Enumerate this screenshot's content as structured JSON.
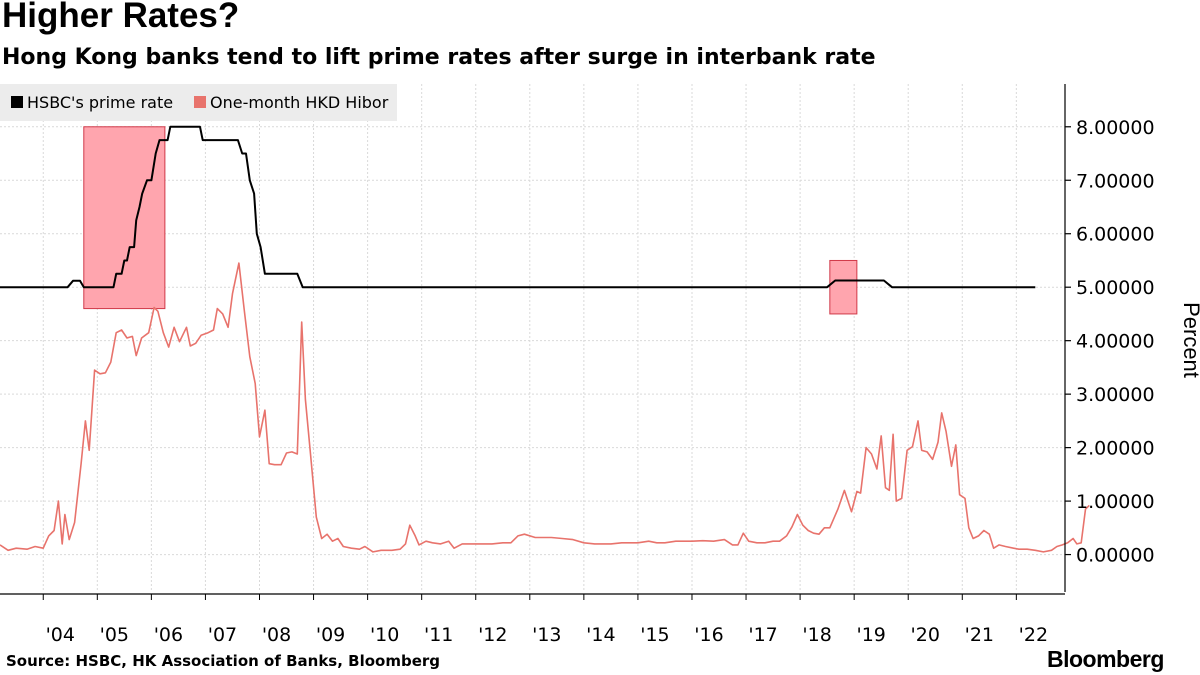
{
  "title": "Higher Rates?",
  "subtitle": "Hong Kong banks tend to lift prime rates after surge in interbank rate",
  "source": "Source: HSBC, HK Association of Banks, Bloomberg",
  "brand": "Bloomberg",
  "colors": {
    "prime": "#000000",
    "hibor": "#e8736c",
    "highlight_fill": "#ffa5ae",
    "highlight_stroke": "#d03848",
    "grid": "#d9d9d9",
    "legend_bg": "#ececec"
  },
  "chart_data": {
    "type": "line",
    "title": "Higher Rates?",
    "subtitle": "Hong Kong banks tend to lift prime rates after surge in interbank rate",
    "ylabel": "Percent",
    "xlim": [
      2003.2,
      2022.9
    ],
    "ylim": [
      -0.7,
      8.8
    ],
    "y_ticks": [
      0,
      1,
      2,
      3,
      4,
      5,
      6,
      7,
      8
    ],
    "y_tick_labels": [
      "0.00000",
      "1.00000",
      "2.00000",
      "3.00000",
      "4.00000",
      "5.00000",
      "6.00000",
      "7.00000",
      "8.00000"
    ],
    "x_ticks": [
      2004,
      2005,
      2006,
      2007,
      2008,
      2009,
      2010,
      2011,
      2012,
      2013,
      2014,
      2015,
      2016,
      2017,
      2018,
      2019,
      2020,
      2021,
      2022
    ],
    "x_tick_labels": [
      "'04",
      "'05",
      "'06",
      "'07",
      "'08",
      "'09",
      "'10",
      "'11",
      "'12",
      "'13",
      "'14",
      "'15",
      "'16",
      "'17",
      "'18",
      "'19",
      "'20",
      "'21",
      "'22"
    ],
    "grid": true,
    "legend_position": "top-left",
    "series": [
      {
        "name": "HSBC's prime rate",
        "color": "#000000",
        "points": [
          [
            2003.2,
            5.0
          ],
          [
            2004.0,
            5.0
          ],
          [
            2004.45,
            5.0
          ],
          [
            2004.55,
            5.12
          ],
          [
            2004.68,
            5.12
          ],
          [
            2004.75,
            5.0
          ],
          [
            2005.0,
            5.0
          ],
          [
            2005.3,
            5.0
          ],
          [
            2005.35,
            5.25
          ],
          [
            2005.45,
            5.25
          ],
          [
            2005.5,
            5.5
          ],
          [
            2005.55,
            5.5
          ],
          [
            2005.6,
            5.75
          ],
          [
            2005.68,
            5.75
          ],
          [
            2005.72,
            6.25
          ],
          [
            2005.78,
            6.5
          ],
          [
            2005.83,
            6.75
          ],
          [
            2005.92,
            7.0
          ],
          [
            2006.0,
            7.0
          ],
          [
            2006.08,
            7.5
          ],
          [
            2006.15,
            7.75
          ],
          [
            2006.3,
            7.75
          ],
          [
            2006.35,
            8.0
          ],
          [
            2006.9,
            8.0
          ],
          [
            2006.95,
            7.75
          ],
          [
            2007.6,
            7.75
          ],
          [
            2007.68,
            7.5
          ],
          [
            2007.75,
            7.5
          ],
          [
            2007.82,
            7.0
          ],
          [
            2007.9,
            6.75
          ],
          [
            2007.95,
            6.0
          ],
          [
            2008.02,
            5.75
          ],
          [
            2008.1,
            5.25
          ],
          [
            2008.7,
            5.25
          ],
          [
            2008.8,
            5.0
          ],
          [
            2018.5,
            5.0
          ],
          [
            2018.65,
            5.125
          ],
          [
            2019.55,
            5.125
          ],
          [
            2019.7,
            5.0
          ],
          [
            2022.35,
            5.0
          ]
        ]
      },
      {
        "name": "One-month HKD Hibor",
        "color": "#e8736c",
        "points": [
          [
            2003.2,
            0.18
          ],
          [
            2003.35,
            0.08
          ],
          [
            2003.5,
            0.12
          ],
          [
            2003.7,
            0.1
          ],
          [
            2003.85,
            0.15
          ],
          [
            2004.0,
            0.12
          ],
          [
            2004.1,
            0.35
          ],
          [
            2004.2,
            0.45
          ],
          [
            2004.28,
            1.0
          ],
          [
            2004.35,
            0.2
          ],
          [
            2004.4,
            0.75
          ],
          [
            2004.48,
            0.28
          ],
          [
            2004.58,
            0.6
          ],
          [
            2004.7,
            1.7
          ],
          [
            2004.78,
            2.5
          ],
          [
            2004.85,
            1.95
          ],
          [
            2004.95,
            3.45
          ],
          [
            2005.05,
            3.38
          ],
          [
            2005.15,
            3.4
          ],
          [
            2005.25,
            3.6
          ],
          [
            2005.35,
            4.15
          ],
          [
            2005.45,
            4.2
          ],
          [
            2005.55,
            4.05
          ],
          [
            2005.65,
            4.08
          ],
          [
            2005.72,
            3.72
          ],
          [
            2005.82,
            4.05
          ],
          [
            2005.95,
            4.15
          ],
          [
            2006.05,
            4.62
          ],
          [
            2006.12,
            4.55
          ],
          [
            2006.22,
            4.15
          ],
          [
            2006.32,
            3.88
          ],
          [
            2006.42,
            4.25
          ],
          [
            2006.52,
            3.98
          ],
          [
            2006.65,
            4.25
          ],
          [
            2006.72,
            3.9
          ],
          [
            2006.82,
            3.95
          ],
          [
            2006.92,
            4.1
          ],
          [
            2007.05,
            4.15
          ],
          [
            2007.15,
            4.2
          ],
          [
            2007.22,
            4.6
          ],
          [
            2007.32,
            4.5
          ],
          [
            2007.42,
            4.25
          ],
          [
            2007.5,
            4.88
          ],
          [
            2007.62,
            5.45
          ],
          [
            2007.72,
            4.55
          ],
          [
            2007.82,
            3.7
          ],
          [
            2007.92,
            3.2
          ],
          [
            2008.0,
            2.2
          ],
          [
            2008.1,
            2.7
          ],
          [
            2008.18,
            1.7
          ],
          [
            2008.28,
            1.68
          ],
          [
            2008.4,
            1.68
          ],
          [
            2008.5,
            1.9
          ],
          [
            2008.6,
            1.92
          ],
          [
            2008.7,
            1.88
          ],
          [
            2008.78,
            4.35
          ],
          [
            2008.85,
            2.9
          ],
          [
            2008.95,
            1.8
          ],
          [
            2009.05,
            0.7
          ],
          [
            2009.15,
            0.3
          ],
          [
            2009.25,
            0.38
          ],
          [
            2009.35,
            0.25
          ],
          [
            2009.45,
            0.3
          ],
          [
            2009.55,
            0.15
          ],
          [
            2009.7,
            0.12
          ],
          [
            2009.85,
            0.1
          ],
          [
            2009.95,
            0.15
          ],
          [
            2010.1,
            0.05
          ],
          [
            2010.25,
            0.08
          ],
          [
            2010.45,
            0.08
          ],
          [
            2010.6,
            0.1
          ],
          [
            2010.7,
            0.2
          ],
          [
            2010.78,
            0.55
          ],
          [
            2010.88,
            0.35
          ],
          [
            2010.95,
            0.18
          ],
          [
            2011.08,
            0.25
          ],
          [
            2011.2,
            0.22
          ],
          [
            2011.35,
            0.2
          ],
          [
            2011.5,
            0.25
          ],
          [
            2011.6,
            0.12
          ],
          [
            2011.75,
            0.2
          ],
          [
            2011.9,
            0.2
          ],
          [
            2012.1,
            0.2
          ],
          [
            2012.3,
            0.2
          ],
          [
            2012.5,
            0.22
          ],
          [
            2012.65,
            0.22
          ],
          [
            2012.78,
            0.35
          ],
          [
            2012.9,
            0.38
          ],
          [
            2013.1,
            0.32
          ],
          [
            2013.4,
            0.32
          ],
          [
            2013.6,
            0.3
          ],
          [
            2013.8,
            0.28
          ],
          [
            2014.0,
            0.22
          ],
          [
            2014.2,
            0.2
          ],
          [
            2014.5,
            0.2
          ],
          [
            2014.7,
            0.22
          ],
          [
            2015.0,
            0.22
          ],
          [
            2015.2,
            0.25
          ],
          [
            2015.35,
            0.22
          ],
          [
            2015.5,
            0.22
          ],
          [
            2015.7,
            0.25
          ],
          [
            2016.0,
            0.25
          ],
          [
            2016.2,
            0.26
          ],
          [
            2016.4,
            0.25
          ],
          [
            2016.6,
            0.28
          ],
          [
            2016.75,
            0.18
          ],
          [
            2016.85,
            0.18
          ],
          [
            2016.95,
            0.4
          ],
          [
            2017.05,
            0.25
          ],
          [
            2017.2,
            0.22
          ],
          [
            2017.35,
            0.22
          ],
          [
            2017.5,
            0.25
          ],
          [
            2017.62,
            0.25
          ],
          [
            2017.75,
            0.35
          ],
          [
            2017.85,
            0.52
          ],
          [
            2017.95,
            0.75
          ],
          [
            2018.05,
            0.55
          ],
          [
            2018.15,
            0.45
          ],
          [
            2018.25,
            0.4
          ],
          [
            2018.35,
            0.38
          ],
          [
            2018.45,
            0.5
          ],
          [
            2018.55,
            0.5
          ],
          [
            2018.7,
            0.85
          ],
          [
            2018.82,
            1.2
          ],
          [
            2018.95,
            0.8
          ],
          [
            2019.05,
            1.18
          ],
          [
            2019.12,
            1.15
          ],
          [
            2019.22,
            2.0
          ],
          [
            2019.32,
            1.88
          ],
          [
            2019.42,
            1.6
          ],
          [
            2019.5,
            2.22
          ],
          [
            2019.58,
            1.25
          ],
          [
            2019.65,
            1.2
          ],
          [
            2019.72,
            2.25
          ],
          [
            2019.78,
            1.0
          ],
          [
            2019.88,
            1.05
          ],
          [
            2019.98,
            1.95
          ],
          [
            2020.08,
            2.02
          ],
          [
            2020.18,
            2.5
          ],
          [
            2020.25,
            1.95
          ],
          [
            2020.35,
            1.92
          ],
          [
            2020.45,
            1.78
          ],
          [
            2020.55,
            2.1
          ],
          [
            2020.62,
            2.65
          ],
          [
            2020.7,
            2.3
          ],
          [
            2020.8,
            1.65
          ],
          [
            2020.88,
            2.05
          ],
          [
            2020.95,
            1.12
          ],
          [
            2021.05,
            1.05
          ],
          [
            2021.12,
            0.5
          ],
          [
            2021.2,
            0.3
          ],
          [
            2021.3,
            0.35
          ],
          [
            2021.4,
            0.45
          ],
          [
            2021.5,
            0.38
          ],
          [
            2021.58,
            0.12
          ],
          [
            2021.68,
            0.18
          ],
          [
            2021.8,
            0.15
          ],
          [
            2021.95,
            0.12
          ],
          [
            2022.05,
            0.1
          ],
          [
            2022.2,
            0.1
          ],
          [
            2022.35,
            0.08
          ],
          [
            2022.5,
            0.05
          ],
          [
            2022.65,
            0.08
          ],
          [
            2022.75,
            0.15
          ],
          [
            2022.85,
            0.18
          ],
          [
            2022.95,
            0.22
          ],
          [
            2023.05,
            0.3
          ],
          [
            2023.12,
            0.2
          ],
          [
            2023.2,
            0.22
          ],
          [
            2023.28,
            0.85
          ],
          [
            2023.35,
            0.92
          ]
        ]
      }
    ],
    "highlights": [
      {
        "x": [
          2004.75,
          2006.25
        ],
        "y": [
          4.6,
          8.0
        ]
      },
      {
        "x": [
          2018.55,
          2019.05
        ],
        "y": [
          4.5,
          5.5
        ]
      }
    ]
  }
}
